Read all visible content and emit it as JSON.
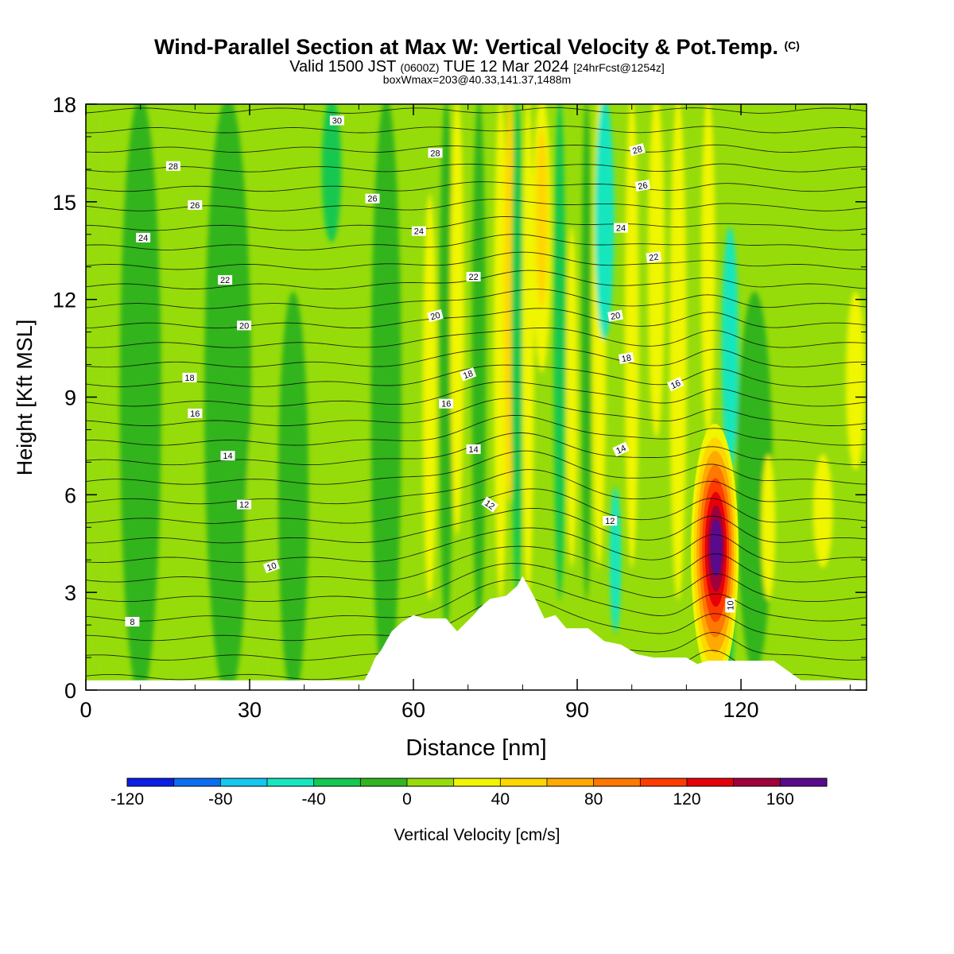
{
  "header": {
    "title_main": "Wind-Parallel Section at Max W: Vertical Velocity & Pot.Temp.",
    "title_mark": "(C)",
    "valid_pre": "Valid 1500 JST",
    "valid_utc": "(0600Z)",
    "valid_date": "TUE 12 Mar 2024",
    "valid_fcst": "[24hrFcst@1254z]",
    "box_info": "boxWmax=203@40.33,141.37,1488m"
  },
  "chart_data": {
    "type": "heatmap",
    "xlabel": "Distance [nm]",
    "ylabel": "Height [Kft MSL]",
    "xlim": [
      0,
      143
    ],
    "ylim": [
      0,
      18
    ],
    "x_ticks": [
      0,
      30,
      60,
      90,
      120
    ],
    "y_ticks": [
      0,
      3,
      6,
      9,
      12,
      15,
      18
    ],
    "colorbar": {
      "label": "Vertical Velocity [cm/s]",
      "ticks": [
        -120,
        -80,
        -40,
        0,
        40,
        80,
        120,
        160
      ],
      "bins": [
        -120,
        -100,
        -80,
        -60,
        -40,
        -20,
        0,
        20,
        40,
        60,
        80,
        100,
        120,
        140,
        160,
        180
      ],
      "colors": [
        "#0a1ee6",
        "#0a6ef0",
        "#14c8f0",
        "#14e6be",
        "#14c850",
        "#32b41e",
        "#96dc0a",
        "#f0f500",
        "#ffd700",
        "#ffaa00",
        "#ff7800",
        "#ff3c00",
        "#e6000a",
        "#a0003c",
        "#5a0a8c"
      ]
    },
    "w_bands": [
      {
        "x": 2,
        "w": 4,
        "y0": 0,
        "y1": 18,
        "v": 10
      },
      {
        "x": 10,
        "w": 7,
        "y0": 0,
        "y1": 18,
        "v": -10
      },
      {
        "x": 26,
        "w": 8,
        "y0": 0,
        "y1": 18,
        "v": -10
      },
      {
        "x": 32,
        "w": 5,
        "y0": 0,
        "y1": 9,
        "v": 10
      },
      {
        "x": 38,
        "w": 5,
        "y0": 0,
        "y1": 12,
        "v": -10
      },
      {
        "x": 45,
        "w": 3,
        "y0": 14,
        "y1": 18,
        "v": -30
      },
      {
        "x": 55,
        "w": 5,
        "y0": 0,
        "y1": 18,
        "v": -10
      },
      {
        "x": 63,
        "w": 2,
        "y0": 3,
        "y1": 15,
        "v": 30
      },
      {
        "x": 66,
        "w": 2,
        "y0": 2,
        "y1": 18,
        "v": -10
      },
      {
        "x": 68,
        "w": 2,
        "y0": 5,
        "y1": 18,
        "v": 30
      },
      {
        "x": 72,
        "w": 2,
        "y0": 2,
        "y1": 18,
        "v": -10
      },
      {
        "x": 76,
        "w": 2,
        "y0": 3,
        "y1": 18,
        "v": 30
      },
      {
        "x": 77.6,
        "w": 1.4,
        "y0": 6,
        "y1": 18,
        "v": 50
      },
      {
        "x": 79,
        "w": 1.5,
        "y0": 3,
        "y1": 18,
        "v": -30
      },
      {
        "x": 81,
        "w": 1.6,
        "y0": 3,
        "y1": 18,
        "v": 30
      },
      {
        "x": 83.5,
        "w": 3,
        "y0": 10,
        "y1": 18,
        "v": 30
      },
      {
        "x": 83.5,
        "w": 1.6,
        "y0": 12,
        "y1": 17,
        "v": 50
      },
      {
        "x": 86.8,
        "w": 1.6,
        "y0": 3,
        "y1": 18,
        "v": -30
      },
      {
        "x": 89,
        "w": 1.5,
        "y0": 4,
        "y1": 14,
        "v": 30
      },
      {
        "x": 91.7,
        "w": 1.3,
        "y0": 3,
        "y1": 18,
        "v": -10
      },
      {
        "x": 94,
        "w": 2,
        "y0": 4,
        "y1": 18,
        "v": 30
      },
      {
        "x": 95,
        "w": 3,
        "y0": 11,
        "y1": 18,
        "v": -50
      },
      {
        "x": 97,
        "w": 1.5,
        "y0": 2,
        "y1": 6,
        "v": -50
      },
      {
        "x": 100,
        "w": 2,
        "y0": 4,
        "y1": 18,
        "v": 30
      },
      {
        "x": 104.5,
        "w": 2.5,
        "y0": 8,
        "y1": 18,
        "v": 30
      },
      {
        "x": 108.5,
        "w": 2.5,
        "y0": 3,
        "y1": 18,
        "v": 30
      },
      {
        "x": 114,
        "w": 2,
        "y0": 8,
        "y1": 18,
        "v": 30
      },
      {
        "x": 118,
        "w": 2.5,
        "y0": 7,
        "y1": 14,
        "v": -50
      },
      {
        "x": 117.5,
        "w": 2,
        "y0": 0.5,
        "y1": 4,
        "v": -30
      },
      {
        "x": 122.5,
        "w": 6,
        "y0": 0.8,
        "y1": 12,
        "v": -10
      },
      {
        "x": 125,
        "w": 2,
        "y0": 3,
        "y1": 7,
        "v": 30
      },
      {
        "x": 135,
        "w": 3,
        "y0": 4,
        "y1": 7,
        "v": 30
      },
      {
        "x": 141,
        "w": 3,
        "y0": 7,
        "y1": 12,
        "v": 30
      }
    ],
    "w_maximum": {
      "x": 115.2,
      "y": 4.2,
      "value": 203
    },
    "terrain_kft": [
      [
        0,
        0.3
      ],
      [
        51,
        0.3
      ],
      [
        52,
        0.6
      ],
      [
        53,
        1.0
      ],
      [
        54,
        1.2
      ],
      [
        55,
        1.5
      ],
      [
        56,
        1.8
      ],
      [
        58,
        2.1
      ],
      [
        60,
        2.3
      ],
      [
        62,
        2.2
      ],
      [
        66,
        2.2
      ],
      [
        68,
        1.8
      ],
      [
        71,
        2.3
      ],
      [
        72,
        2.5
      ],
      [
        74,
        2.8
      ],
      [
        77,
        2.9
      ],
      [
        79,
        3.2
      ],
      [
        80,
        3.5
      ],
      [
        82,
        2.9
      ],
      [
        84,
        2.2
      ],
      [
        86,
        2.3
      ],
      [
        88,
        1.9
      ],
      [
        92,
        1.9
      ],
      [
        95,
        1.5
      ],
      [
        98,
        1.4
      ],
      [
        101,
        1.1
      ],
      [
        104,
        1.0
      ],
      [
        110,
        1.0
      ],
      [
        112,
        0.8
      ],
      [
        114,
        0.9
      ],
      [
        126,
        0.9
      ],
      [
        131,
        0.3
      ],
      [
        143,
        0.3
      ]
    ],
    "theta_labels": [
      {
        "text": "30",
        "x": 46,
        "y": 17.5,
        "rot": 0
      },
      {
        "text": "28",
        "x": 16,
        "y": 16.1,
        "rot": 0
      },
      {
        "text": "28",
        "x": 64,
        "y": 16.5,
        "rot": 0
      },
      {
        "text": "28",
        "x": 101,
        "y": 16.6,
        "rot": -15
      },
      {
        "text": "26",
        "x": 102,
        "y": 15.5,
        "rot": -10
      },
      {
        "text": "26",
        "x": 20,
        "y": 14.9,
        "rot": 0
      },
      {
        "text": "26",
        "x": 52.5,
        "y": 15.1,
        "rot": 0
      },
      {
        "text": "24",
        "x": 10.5,
        "y": 13.9,
        "rot": 0
      },
      {
        "text": "24",
        "x": 61,
        "y": 14.1,
        "rot": 0
      },
      {
        "text": "24",
        "x": 98,
        "y": 14.2,
        "rot": 0
      },
      {
        "text": "22",
        "x": 104,
        "y": 13.3,
        "rot": -8
      },
      {
        "text": "22",
        "x": 25.5,
        "y": 12.6,
        "rot": 0
      },
      {
        "text": "22",
        "x": 71,
        "y": 12.7,
        "rot": 0
      },
      {
        "text": "20",
        "x": 29,
        "y": 11.2,
        "rot": 0
      },
      {
        "text": "20",
        "x": 64,
        "y": 11.5,
        "rot": -15
      },
      {
        "text": "20",
        "x": 97,
        "y": 11.5,
        "rot": -10
      },
      {
        "text": "18",
        "x": 99,
        "y": 10.2,
        "rot": -10
      },
      {
        "text": "18",
        "x": 19,
        "y": 9.6,
        "rot": 0
      },
      {
        "text": "18",
        "x": 70,
        "y": 9.7,
        "rot": -20
      },
      {
        "text": "16",
        "x": 108,
        "y": 9.4,
        "rot": -25
      },
      {
        "text": "16",
        "x": 20,
        "y": 8.5,
        "rot": 0
      },
      {
        "text": "16",
        "x": 66,
        "y": 8.8,
        "rot": 0
      },
      {
        "text": "14",
        "x": 26,
        "y": 7.2,
        "rot": 0
      },
      {
        "text": "14",
        "x": 71,
        "y": 7.4,
        "rot": 0
      },
      {
        "text": "14",
        "x": 98,
        "y": 7.4,
        "rot": -25
      },
      {
        "text": "12",
        "x": 29,
        "y": 5.7,
        "rot": 0
      },
      {
        "text": "12",
        "x": 74,
        "y": 5.7,
        "rot": 35
      },
      {
        "text": "12",
        "x": 96,
        "y": 5.2,
        "rot": 0
      },
      {
        "text": "10",
        "x": 34,
        "y": 3.8,
        "rot": -20
      },
      {
        "text": "10",
        "x": 118,
        "y": 2.6,
        "rot": -90
      },
      {
        "text": "8",
        "x": 8.5,
        "y": 2.1,
        "rot": 0
      }
    ]
  }
}
